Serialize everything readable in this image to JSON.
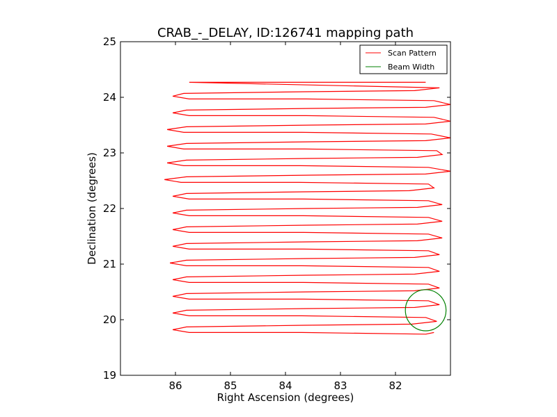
{
  "chart_data": {
    "type": "line",
    "title": "CRAB_-_DELAY, ID:126741 mapping path",
    "xlabel": "Right Ascension (degrees)",
    "ylabel": "Declination (degrees)",
    "xlim": [
      87.0,
      81.0
    ],
    "ylim": [
      19,
      25
    ],
    "x_inverted": true,
    "xticks": [
      86,
      85,
      84,
      83,
      82
    ],
    "yticks": [
      19,
      20,
      21,
      22,
      23,
      24,
      25
    ],
    "grid": false,
    "legend_position": "top-right",
    "legend": [
      "Scan Pattern",
      "Beam Width"
    ],
    "series": [
      {
        "name": "Scan Pattern",
        "color": "#ff0000",
        "kind": "boustrophedon-scan",
        "start": [
          81.3,
          19.77
        ],
        "end": [
          85.75,
          24.27
        ],
        "rows": [
          {
            "dec": 19.77,
            "ra_min": 81.35,
            "ra_max": 86.05
          },
          {
            "dec": 19.92,
            "ra_min": 81.25,
            "ra_max": 86.05
          },
          {
            "dec": 20.07,
            "ra_min": 81.35,
            "ra_max": 86.05
          },
          {
            "dec": 20.22,
            "ra_min": 81.2,
            "ra_max": 86.05
          },
          {
            "dec": 20.37,
            "ra_min": 81.3,
            "ra_max": 86.05
          },
          {
            "dec": 20.52,
            "ra_min": 81.2,
            "ra_max": 86.05
          },
          {
            "dec": 20.67,
            "ra_min": 81.3,
            "ra_max": 86.05
          },
          {
            "dec": 20.82,
            "ra_min": 81.2,
            "ra_max": 86.05
          },
          {
            "dec": 20.97,
            "ra_min": 81.3,
            "ra_max": 86.1
          },
          {
            "dec": 21.12,
            "ra_min": 81.2,
            "ra_max": 86.05
          },
          {
            "dec": 21.27,
            "ra_min": 81.3,
            "ra_max": 86.05
          },
          {
            "dec": 21.42,
            "ra_min": 81.15,
            "ra_max": 86.05
          },
          {
            "dec": 21.57,
            "ra_min": 81.3,
            "ra_max": 86.05
          },
          {
            "dec": 21.72,
            "ra_min": 81.15,
            "ra_max": 86.05
          },
          {
            "dec": 21.87,
            "ra_min": 81.3,
            "ra_max": 86.05
          },
          {
            "dec": 22.02,
            "ra_min": 81.15,
            "ra_max": 86.05
          },
          {
            "dec": 22.17,
            "ra_min": 81.3,
            "ra_max": 86.05
          },
          {
            "dec": 22.32,
            "ra_min": 81.3,
            "ra_max": 86.05
          },
          {
            "dec": 22.47,
            "ra_min": 81.3,
            "ra_max": 86.2
          },
          {
            "dec": 22.62,
            "ra_min": 81.0,
            "ra_max": 86.05
          },
          {
            "dec": 22.77,
            "ra_min": 81.3,
            "ra_max": 86.15
          },
          {
            "dec": 22.92,
            "ra_min": 81.15,
            "ra_max": 86.05
          },
          {
            "dec": 23.07,
            "ra_min": 81.15,
            "ra_max": 86.15
          },
          {
            "dec": 23.22,
            "ra_min": 81.0,
            "ra_max": 86.05
          },
          {
            "dec": 23.37,
            "ra_min": 81.25,
            "ra_max": 86.15
          },
          {
            "dec": 23.52,
            "ra_min": 81.0,
            "ra_max": 86.05
          },
          {
            "dec": 23.67,
            "ra_min": 81.2,
            "ra_max": 86.05
          },
          {
            "dec": 23.82,
            "ra_min": 81.0,
            "ra_max": 86.05
          },
          {
            "dec": 23.97,
            "ra_min": 81.2,
            "ra_max": 86.05
          },
          {
            "dec": 24.12,
            "ra_min": 81.2,
            "ra_max": 86.1
          }
        ]
      },
      {
        "name": "Beam Width",
        "color": "#008000",
        "kind": "circle",
        "center": [
          81.45,
          20.17
        ],
        "radius_deg": 0.37
      }
    ]
  }
}
